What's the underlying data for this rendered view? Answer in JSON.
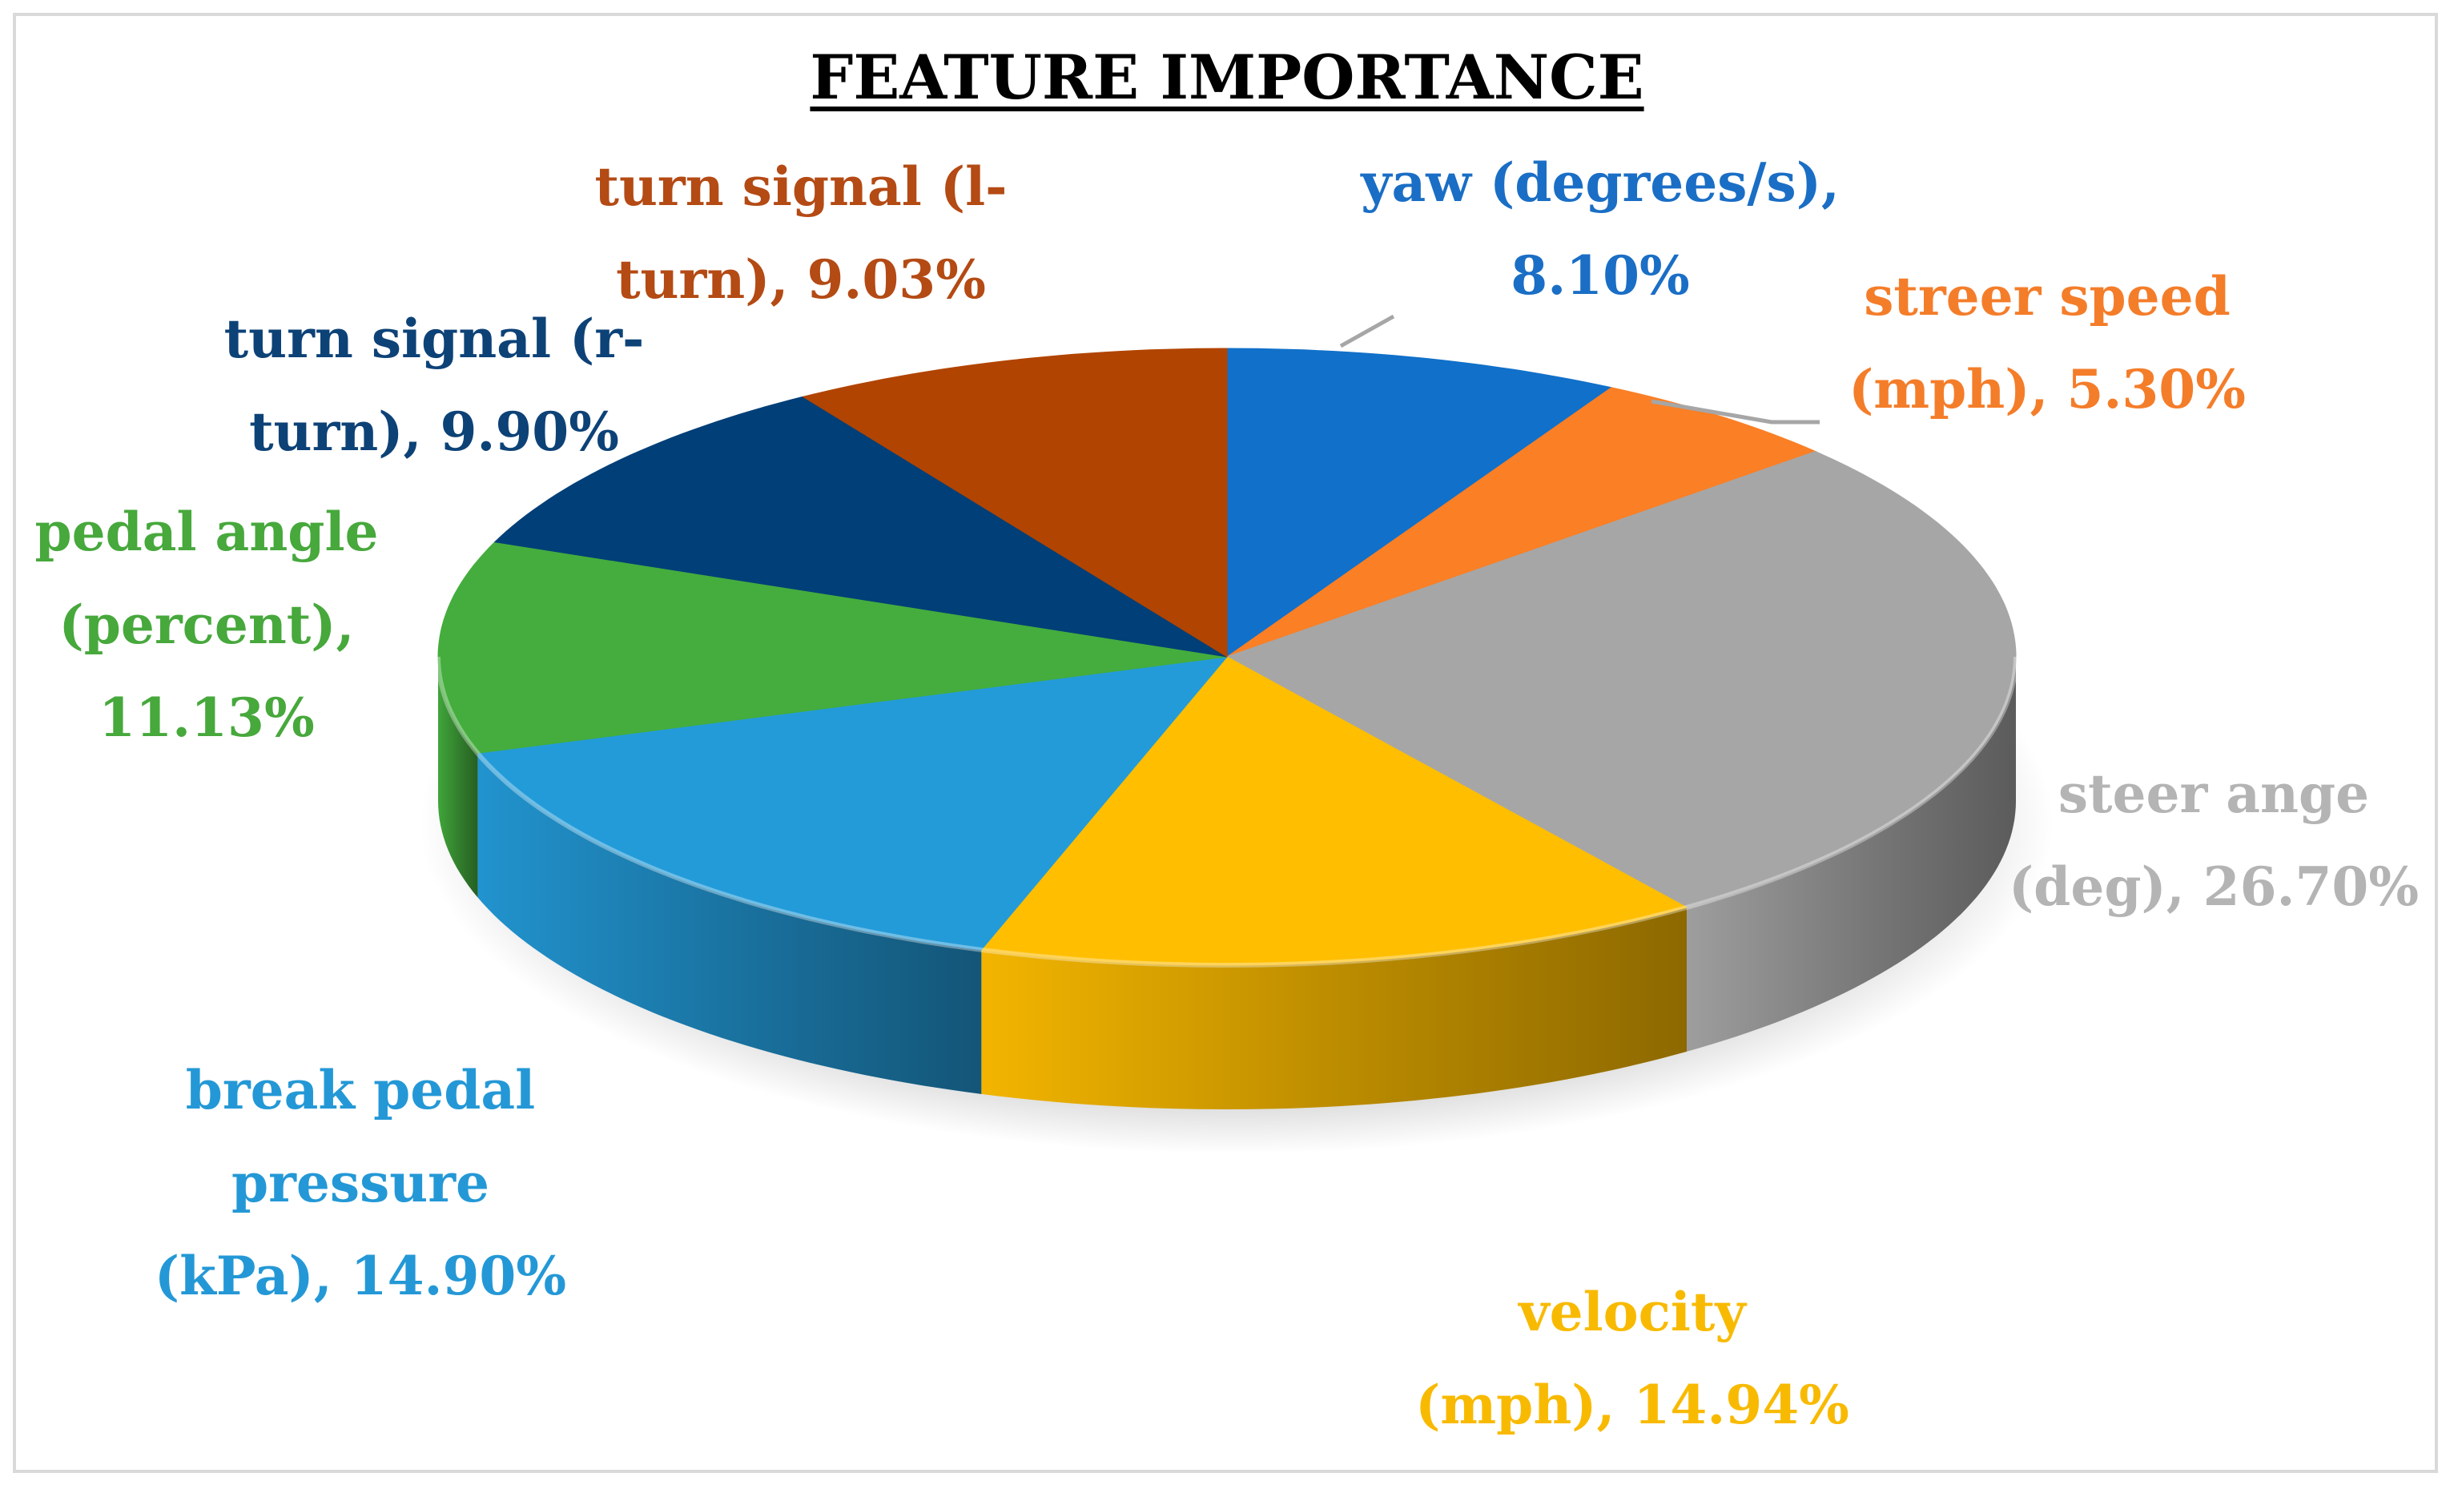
{
  "chart_data": {
    "type": "pie",
    "style": "3d",
    "title": "FEATURE IMPORTANCE",
    "slices": [
      {
        "key": "yaw",
        "label_lines": [
          "yaw (degrees/s),",
          "8.10%"
        ],
        "value": 8.1,
        "color": "#1170c9",
        "label_color": "#1a6ec5"
      },
      {
        "key": "streer_speed",
        "label_lines": [
          "streer speed",
          "(mph), 5.30%"
        ],
        "value": 5.3,
        "color": "#fa7f25",
        "label_color": "#f47d2a"
      },
      {
        "key": "steer_ange",
        "label_lines": [
          "steer ange",
          "(deg), 26.70%"
        ],
        "value": 26.7,
        "color": "#a6a6a6",
        "label_color": "#b4b4b4"
      },
      {
        "key": "velocity",
        "label_lines": [
          "velocity",
          "(mph), 14.94%"
        ],
        "value": 14.94,
        "color": "#ffbe00",
        "label_color": "#f8ba00"
      },
      {
        "key": "break_pedal_pressure",
        "label_lines": [
          "break pedal",
          "pressure",
          "(kPa), 14.90%"
        ],
        "value": 14.9,
        "color": "#239bd9",
        "label_color": "#2498d6"
      },
      {
        "key": "pedal_angle",
        "label_lines": [
          "pedal angle",
          "(percent),",
          "11.13%"
        ],
        "value": 11.13,
        "color": "#44ad3d",
        "label_color": "#47a83c"
      },
      {
        "key": "turn_signal_r",
        "label_lines": [
          "turn signal (r-",
          "turn), 9.90%"
        ],
        "value": 9.9,
        "color": "#003f78",
        "label_color": "#0d4277"
      },
      {
        "key": "turn_signal_l",
        "label_lines": [
          "turn signal (l-",
          "turn), 9.03%"
        ],
        "value": 9.03,
        "color": "#b14400",
        "label_color": "#b44a14"
      }
    ]
  }
}
